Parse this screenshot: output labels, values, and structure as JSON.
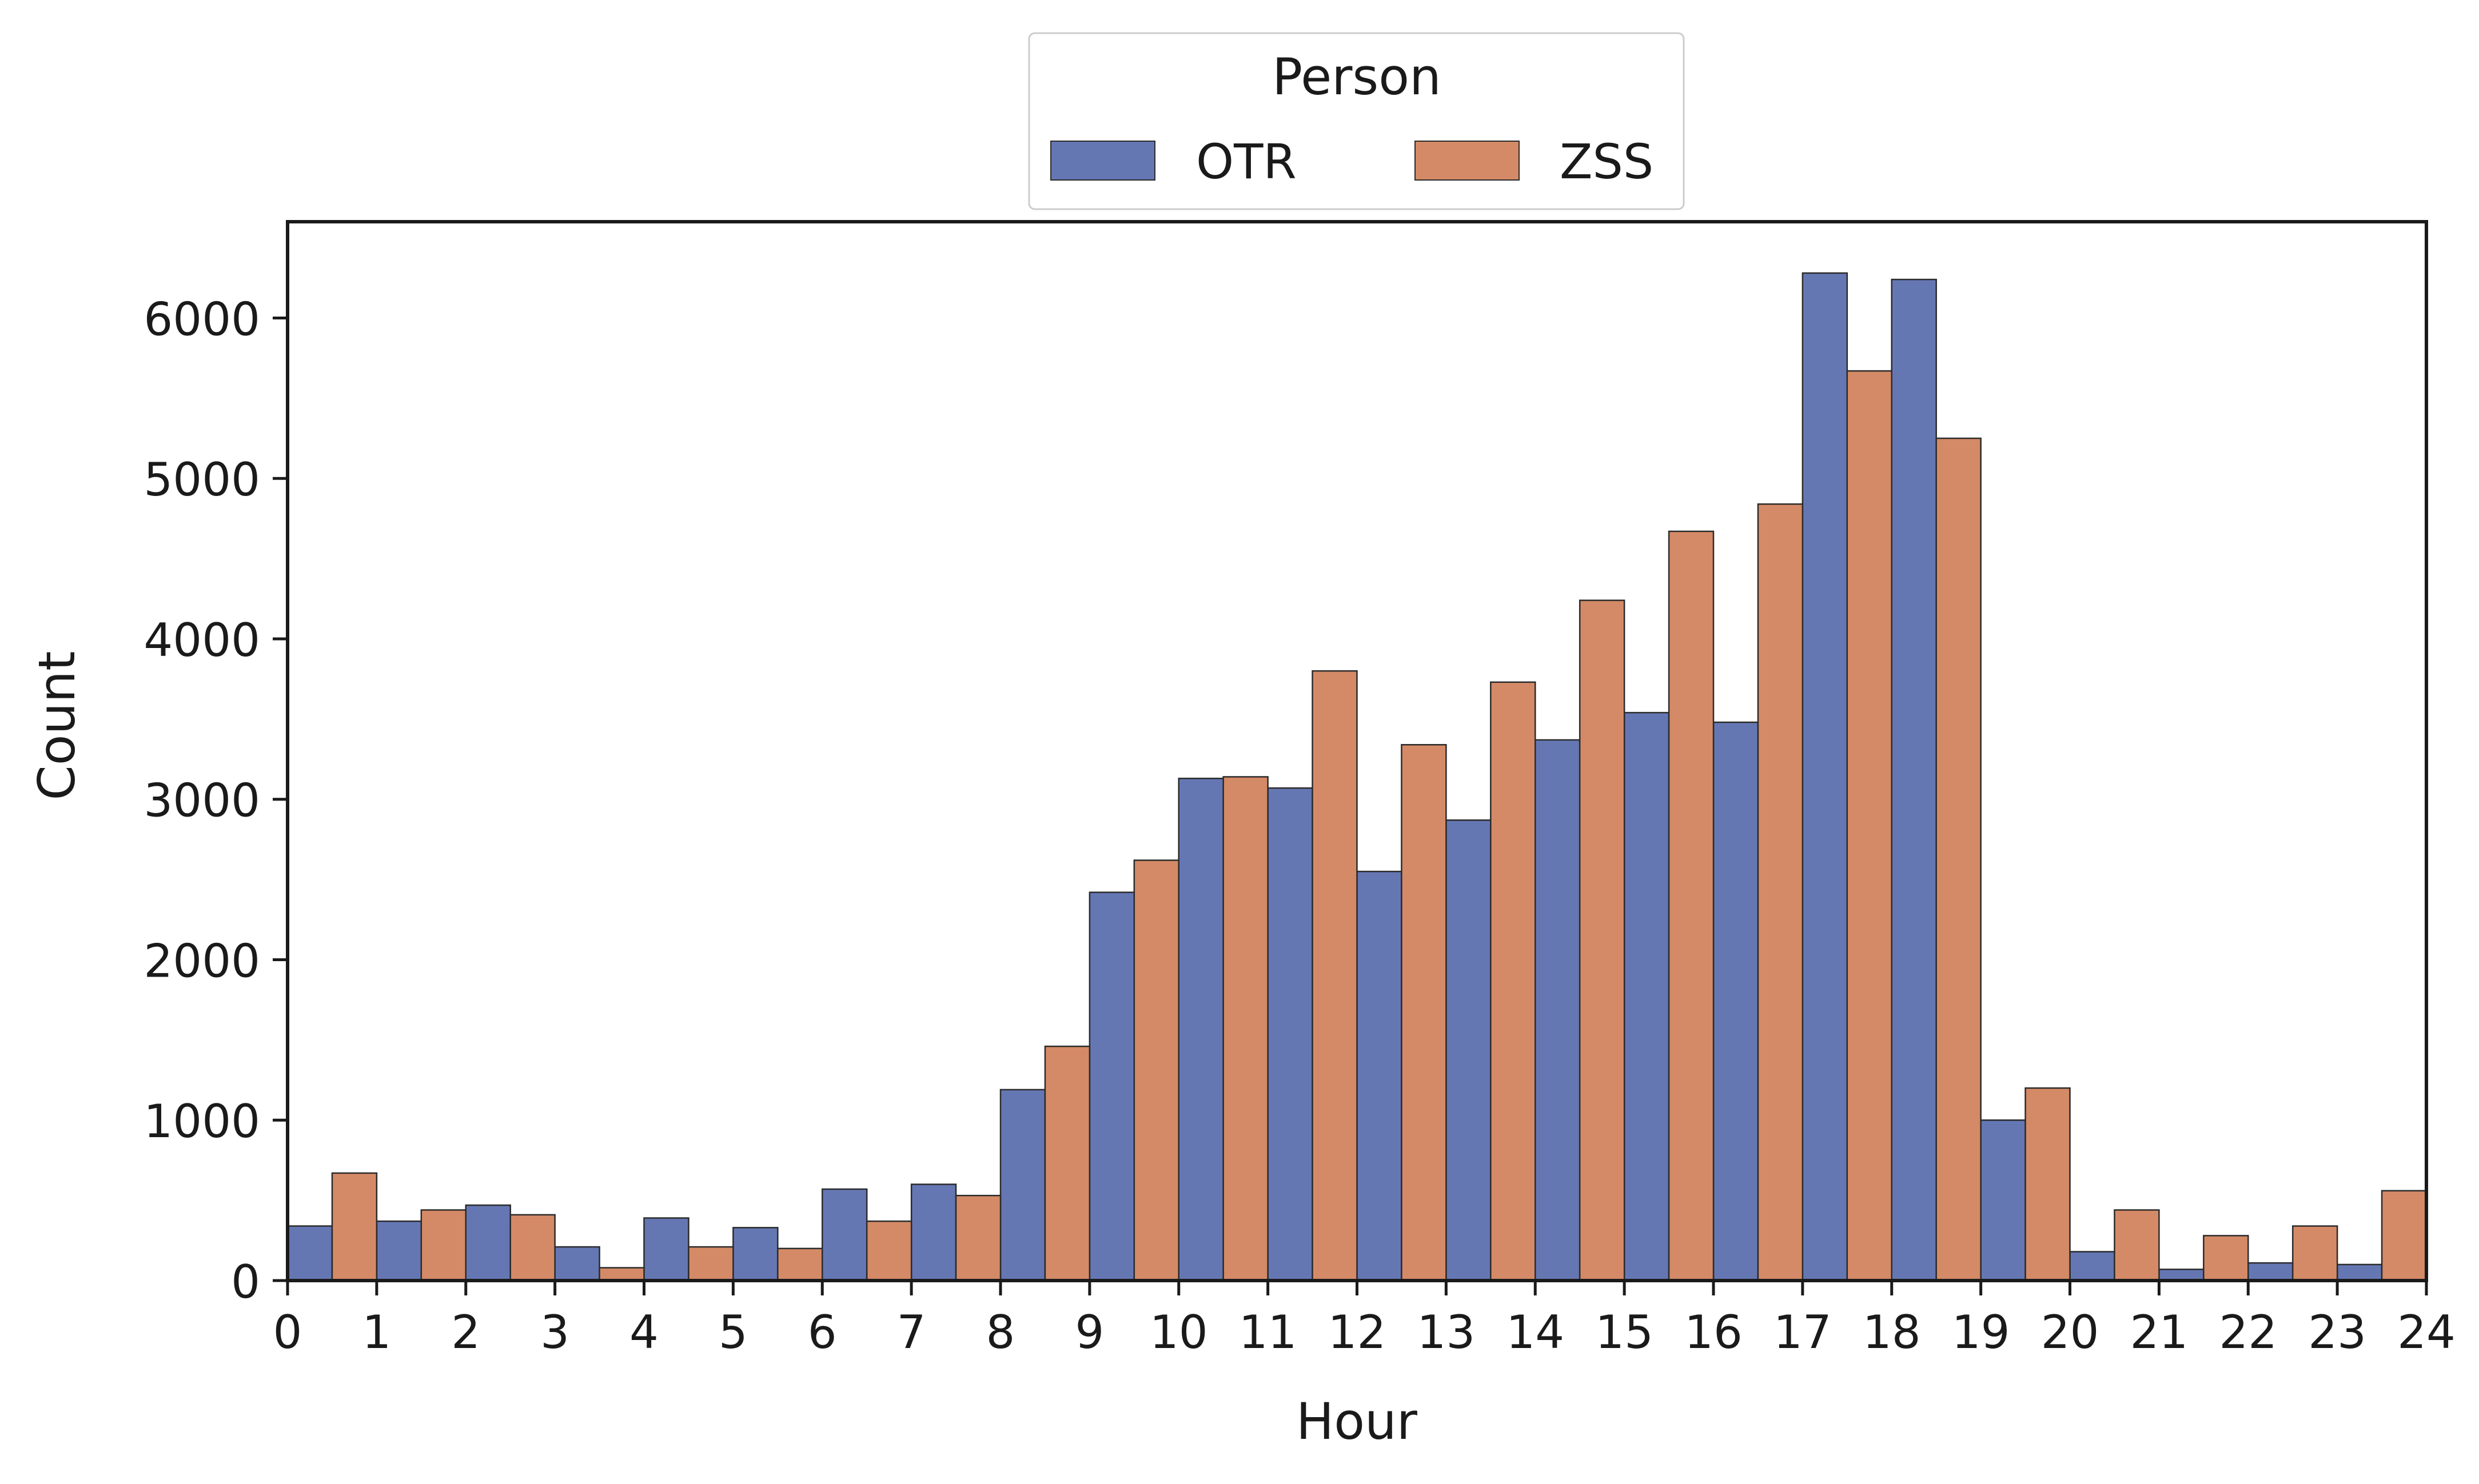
{
  "colors": {
    "OTR": "#6577b3",
    "ZSS": "#d48a66",
    "edge": "#2b2b2b",
    "axis": "#1a1a1a"
  },
  "chart_data": {
    "type": "bar",
    "subtype": "dodged histogram",
    "title": "",
    "xlabel": "Hour",
    "ylabel": "Count",
    "xlim": [
      0,
      24
    ],
    "ylim": [
      0,
      6600
    ],
    "xticks": [
      "0",
      "1",
      "2",
      "3",
      "4",
      "5",
      "6",
      "7",
      "8",
      "9",
      "10",
      "11",
      "12",
      "13",
      "14",
      "15",
      "16",
      "17",
      "18",
      "19",
      "20",
      "21",
      "22",
      "23",
      "24"
    ],
    "yticks": [
      "0",
      "1000",
      "2000",
      "3000",
      "4000",
      "5000",
      "6000"
    ],
    "grid": false,
    "legend": {
      "title": "Person",
      "placement": "top-center",
      "entries": [
        "OTR",
        "ZSS"
      ]
    },
    "bins": [
      "0-1",
      "1-2",
      "2-3",
      "3-4",
      "4-5",
      "5-6",
      "6-7",
      "7-8",
      "8-9",
      "9-10",
      "10-11",
      "11-12",
      "12-13",
      "13-14",
      "14-15",
      "15-16",
      "16-17",
      "17-18",
      "18-19",
      "19-20",
      "20-21",
      "21-22",
      "22-23",
      "23-24"
    ],
    "series": [
      {
        "name": "OTR",
        "values": [
          340,
          370,
          470,
          210,
          390,
          330,
          570,
          600,
          1190,
          2420,
          3130,
          3070,
          2550,
          2870,
          3370,
          3540,
          3480,
          6280,
          6240,
          1000,
          180,
          70,
          110,
          100
        ]
      },
      {
        "name": "ZSS",
        "values": [
          670,
          440,
          410,
          80,
          210,
          200,
          370,
          530,
          1460,
          2620,
          3140,
          3800,
          3340,
          3730,
          4240,
          4670,
          4840,
          5670,
          5250,
          1200,
          440,
          280,
          340,
          560
        ]
      }
    ]
  }
}
